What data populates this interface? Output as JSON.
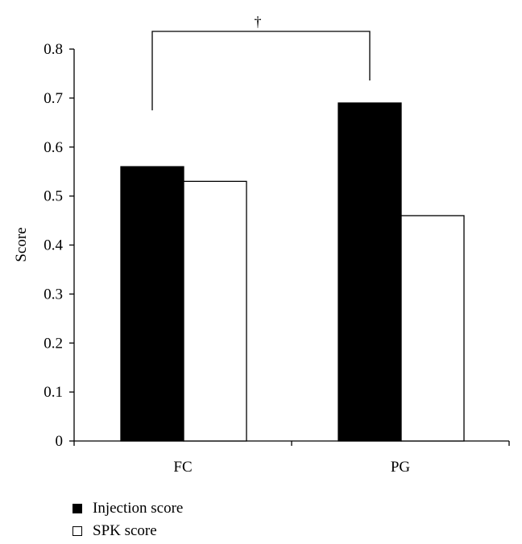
{
  "chart_data": {
    "type": "bar",
    "categories": [
      "FC",
      "PG"
    ],
    "series": [
      {
        "name": "Injection score",
        "values": [
          0.56,
          0.69
        ],
        "color": "#000000",
        "fill": "solid"
      },
      {
        "name": "SPK score",
        "values": [
          0.53,
          0.46
        ],
        "color": "#ffffff",
        "fill": "hollow"
      }
    ],
    "ylabel": "Score",
    "xlabel": "",
    "ylim": [
      0,
      0.8
    ],
    "yticks": [
      "0",
      "0.1",
      "0.2",
      "0.3",
      "0.4",
      "0.5",
      "0.6",
      "0.7",
      "0.8"
    ],
    "grid": false,
    "legend_position": "bottom-left",
    "annotations": [
      {
        "text": "†",
        "type": "significance-bracket",
        "between": [
          "FC",
          "PG"
        ]
      }
    ]
  }
}
